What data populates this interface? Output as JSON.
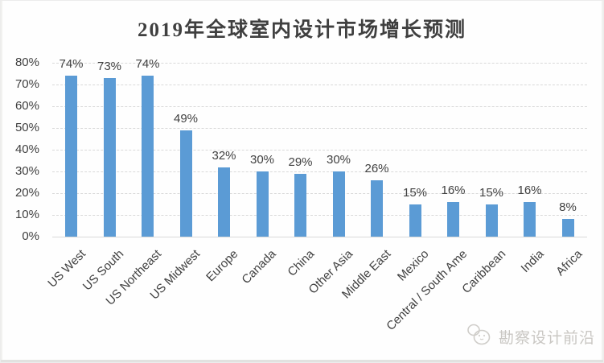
{
  "chart_data": {
    "type": "bar",
    "title": "2019年全球室内设计市场增长预测",
    "categories": [
      "US West",
      "US South",
      "US Northeast",
      "US Midwest",
      "Europe",
      "Canada",
      "China",
      "Other Asia",
      "Middle East",
      "Mexico",
      "Central / South Ame",
      "Caribbean",
      "India",
      "Africa"
    ],
    "values": [
      74,
      73,
      74,
      49,
      32,
      30,
      29,
      30,
      26,
      15,
      16,
      15,
      16,
      8
    ],
    "data_labels": [
      "74%",
      "73%",
      "74%",
      "49%",
      "32%",
      "30%",
      "29%",
      "30%",
      "26%",
      "15%",
      "16%",
      "15%",
      "16%",
      "8%"
    ],
    "xlabel": "",
    "ylabel": "",
    "y_tick_labels": [
      "0%",
      "10%",
      "20%",
      "30%",
      "40%",
      "50%",
      "60%",
      "70%",
      "80%"
    ],
    "ylim": [
      0,
      80
    ],
    "y_tick_step": 10,
    "grid": true,
    "gridline_style": "dashed",
    "legend": "none",
    "bar_color": "#5b9bd5",
    "gridline_color": "#d9d9d9",
    "label_color": "#404040",
    "title_color": "#3f3f3f"
  },
  "watermark": {
    "text": "勘察设计前沿",
    "icon": "doodle-mascot-logo-icon",
    "color": "#c9c7c3"
  }
}
